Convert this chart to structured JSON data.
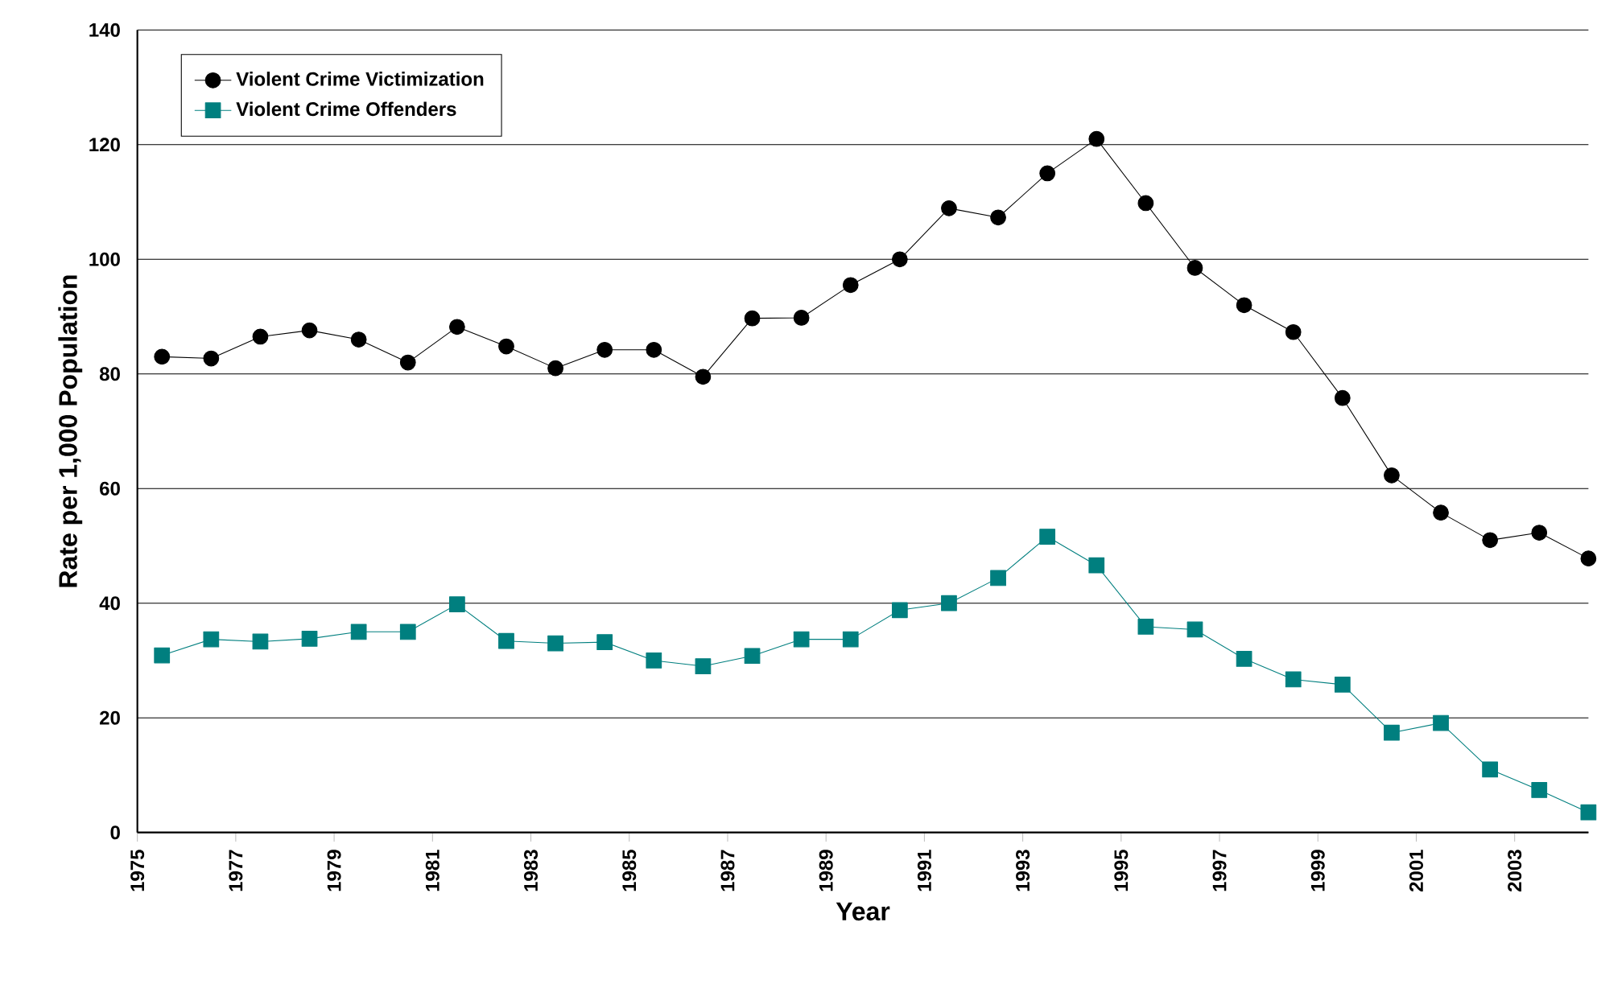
{
  "chart_data": {
    "type": "line",
    "xlabel": "Year",
    "ylabel": "Rate per 1,000 Population",
    "x": [
      1975.5,
      1976.5,
      1977.5,
      1978.5,
      1979.5,
      1980.5,
      1981.5,
      1982.5,
      1983.5,
      1984.5,
      1985.5,
      1986.5,
      1987.5,
      1988.5,
      1989.5,
      1990.5,
      1991.5,
      1992.5,
      1993.5,
      1994.5,
      1995.5,
      1996.5,
      1997.5,
      1998.5,
      1999.5,
      2000.5,
      2001.5,
      2002.5,
      2003.5,
      2004.5
    ],
    "series": [
      {
        "name": "Violent Crime Victimization",
        "color": "#000000",
        "marker": "circle",
        "values": [
          83,
          82.7,
          86.5,
          87.6,
          86,
          82,
          88.2,
          84.8,
          81,
          84.2,
          84.2,
          79.5,
          89.7,
          89.8,
          95.5,
          100,
          108.9,
          107.3,
          115,
          121,
          109.8,
          98.5,
          92,
          87.3,
          75.8,
          62.3,
          55.8,
          51,
          52.3,
          47.8
        ]
      },
      {
        "name": "Violent Crime Offenders",
        "color": "#007f7f",
        "marker": "square",
        "values": [
          30.9,
          33.7,
          33.3,
          33.8,
          35,
          35,
          39.8,
          33.4,
          33,
          33.2,
          30,
          29,
          30.8,
          33.7,
          33.7,
          38.8,
          40,
          44.4,
          51.6,
          46.6,
          35.9,
          35.4,
          30.3,
          26.7,
          25.8,
          17.4,
          19.1,
          11,
          7.4,
          3.5
        ]
      }
    ],
    "xlim": [
      1975,
      2004.5
    ],
    "xticks": [
      1975,
      1977,
      1979,
      1981,
      1983,
      1985,
      1987,
      1989,
      1991,
      1993,
      1995,
      1997,
      1999,
      2001,
      2003
    ],
    "ylim": [
      0,
      140
    ],
    "yticks": [
      0,
      20,
      40,
      60,
      80,
      100,
      120,
      140
    ],
    "grid": "y",
    "legend": "top left",
    "line_style": "solid"
  }
}
